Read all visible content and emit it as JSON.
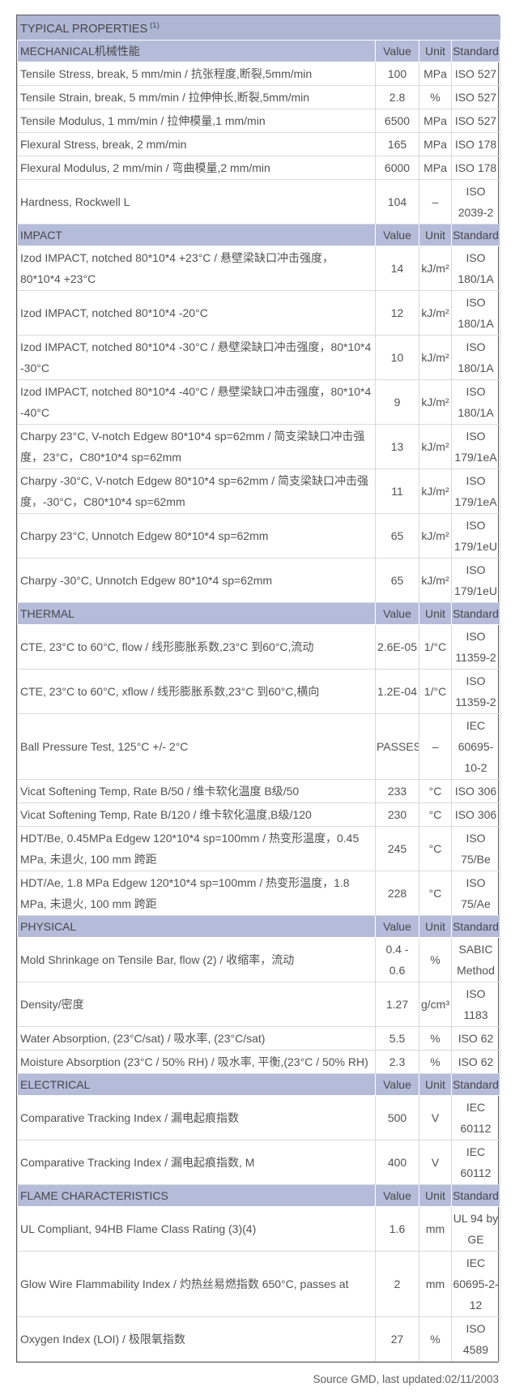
{
  "page": {
    "title_text": "TYPICAL PROPERTIES",
    "title_superscript": "(1)",
    "footer_note": "Source GMD, last updated:02/11/2003"
  },
  "columns": {
    "value": "Value",
    "unit": "Unit",
    "standard": "Standard"
  },
  "colors": {
    "title_bg": "#aeb6d4",
    "section_header_bg": "#b5bcd9",
    "header_text": "#47474a",
    "body_text": "#525254",
    "grid_line": "#dadada",
    "outer_border": "#5a5a5c"
  },
  "sections": [
    {
      "name": "MECHANICAL机械性能",
      "rows": [
        {
          "property": "Tensile Stress, break, 5 mm/min / 抗张程度,断裂,5mm/min",
          "value": "100",
          "unit": "MPa",
          "standard": "ISO 527"
        },
        {
          "property": "Tensile Strain, break, 5 mm/min / 拉伸伸长,断裂,5mm/min",
          "value": "2.8",
          "unit": "%",
          "standard": "ISO 527"
        },
        {
          "property": "Tensile Modulus, 1 mm/min / 拉伸模量,1 mm/min",
          "value": "6500",
          "unit": "MPa",
          "standard": "ISO 527"
        },
        {
          "property": "Flexural Stress, break, 2 mm/min",
          "value": "165",
          "unit": "MPa",
          "standard": "ISO 178"
        },
        {
          "property": "Flexural Modulus, 2 mm/min / 弯曲模量,2 mm/min",
          "value": "6000",
          "unit": "MPa",
          "standard": "ISO 178"
        },
        {
          "property": "Hardness, Rockwell L",
          "value": "104",
          "unit": "–",
          "standard": "ISO\n2039-2"
        }
      ]
    },
    {
      "name": "IMPACT",
      "rows": [
        {
          "property": "Izod IMPACT, notched 80*10*4 +23°C / 悬壁梁缺口冲击强度，80*10*4 +23°C",
          "value": "14",
          "unit": "kJ/m²",
          "standard": "ISO\n180/1A"
        },
        {
          "property": "Izod IMPACT, notched 80*10*4 -20°C",
          "value": "12",
          "unit": "kJ/m²",
          "standard": "ISO\n180/1A"
        },
        {
          "property": "Izod IMPACT, notched 80*10*4 -30°C / 悬壁梁缺口冲击强度，80*10*4 -30°C",
          "value": "10",
          "unit": "kJ/m²",
          "standard": "ISO\n180/1A"
        },
        {
          "property": "Izod IMPACT, notched 80*10*4 -40°C / 悬壁梁缺口冲击强度，80*10*4 -40°C",
          "value": "9",
          "unit": "kJ/m²",
          "standard": "ISO\n180/1A"
        },
        {
          "property": "Charpy 23°C, V-notch Edgew 80*10*4 sp=62mm / 简支梁缺口冲击强度，23°C，C80*10*4 sp=62mm",
          "value": "13",
          "unit": "kJ/m²",
          "standard": "ISO\n179/1eA"
        },
        {
          "property": "Charpy -30°C, V-notch Edgew 80*10*4 sp=62mm / 简支梁缺口冲击强度，-30°C，C80*10*4 sp=62mm",
          "value": "11",
          "unit": "kJ/m²",
          "standard": "ISO\n179/1eA"
        },
        {
          "property": "Charpy 23°C, Unnotch Edgew 80*10*4 sp=62mm",
          "value": "65",
          "unit": "kJ/m²",
          "standard": "ISO\n179/1eU"
        },
        {
          "property": "Charpy -30°C, Unnotch Edgew 80*10*4 sp=62mm",
          "value": "65",
          "unit": "kJ/m²",
          "standard": "ISO\n179/1eU"
        }
      ]
    },
    {
      "name": "THERMAL",
      "rows": [
        {
          "property": "CTE, 23°C to 60°C, flow / 线形膨胀系数,23°C 到60°C,流动",
          "value": "2.6E-05",
          "unit": "1/°C",
          "standard": "ISO\n11359-2"
        },
        {
          "property": "CTE, 23°C to 60°C, xflow / 线形膨胀系数,23°C 到60°C,横向",
          "value": "1.2E-04",
          "unit": "1/°C",
          "standard": "ISO\n11359-2"
        },
        {
          "property": "Ball Pressure Test, 125°C +/- 2°C",
          "value": "PASSES",
          "unit": "–",
          "standard": "IEC\n60695-\n10-2"
        },
        {
          "property": "Vicat Softening Temp, Rate B/50 / 维卡软化温度 B级/50",
          "value": "233",
          "unit": "°C",
          "standard": "ISO 306"
        },
        {
          "property": "Vicat Softening Temp, Rate B/120 / 维卡软化温度,B级/120",
          "value": "230",
          "unit": "°C",
          "standard": "ISO 306"
        },
        {
          "property": "HDT/Be, 0.45MPa Edgew 120*10*4 sp=100mm / 热变形温度，0.45 MPa, 未退火, 100 mm 跨距",
          "value": "245",
          "unit": "°C",
          "standard": "ISO\n75/Be"
        },
        {
          "property": "HDT/Ae, 1.8 MPa Edgew 120*10*4 sp=100mm / 热变形温度，1.8 MPa, 未退火, 100 mm 跨距",
          "value": "228",
          "unit": "°C",
          "standard": "ISO\n75/Ae"
        }
      ]
    },
    {
      "name": "PHYSICAL",
      "rows": [
        {
          "property": "Mold Shrinkage on Tensile Bar, flow (2) / 收缩率，流动",
          "value": "0.4 -\n0.6",
          "unit": "%",
          "standard": "SABIC\nMethod"
        },
        {
          "property": "Density/密度",
          "value": "1.27",
          "unit": "g/cm³",
          "standard": "ISO 1183"
        },
        {
          "property": "Water Absorption, (23°C/sat) / 吸水率, (23°C/sat)",
          "value": "5.5",
          "unit": "%",
          "standard": "ISO 62"
        },
        {
          "property": "Moisture Absorption (23°C / 50% RH) / 吸水率, 平衡,(23°C / 50% RH)",
          "value": "2.3",
          "unit": "%",
          "standard": "ISO 62"
        }
      ]
    },
    {
      "name": "ELECTRICAL",
      "rows": [
        {
          "property": "Comparative Tracking Index / 漏电起痕指数",
          "value": "500",
          "unit": "V",
          "standard": "IEC 60112"
        },
        {
          "property": "Comparative Tracking Index / 漏电起痕指数, M",
          "value": "400",
          "unit": "V",
          "standard": "IEC 60112"
        }
      ]
    },
    {
      "name": "FLAME CHARACTERISTICS",
      "rows": [
        {
          "property": "UL Compliant, 94HB Flame Class Rating (3)(4)",
          "value": "1.6",
          "unit": "mm",
          "standard": "UL 94 by\nGE"
        },
        {
          "property": "Glow Wire Flammability Index / 灼热丝易燃指数 650°C, passes at",
          "value": "2",
          "unit": "mm",
          "standard": "IEC\n60695-2-\n12"
        },
        {
          "property": "Oxygen Index (LOI) / 极限氧指数",
          "value": "27",
          "unit": "%",
          "standard": "ISO 4589"
        }
      ]
    }
  ]
}
